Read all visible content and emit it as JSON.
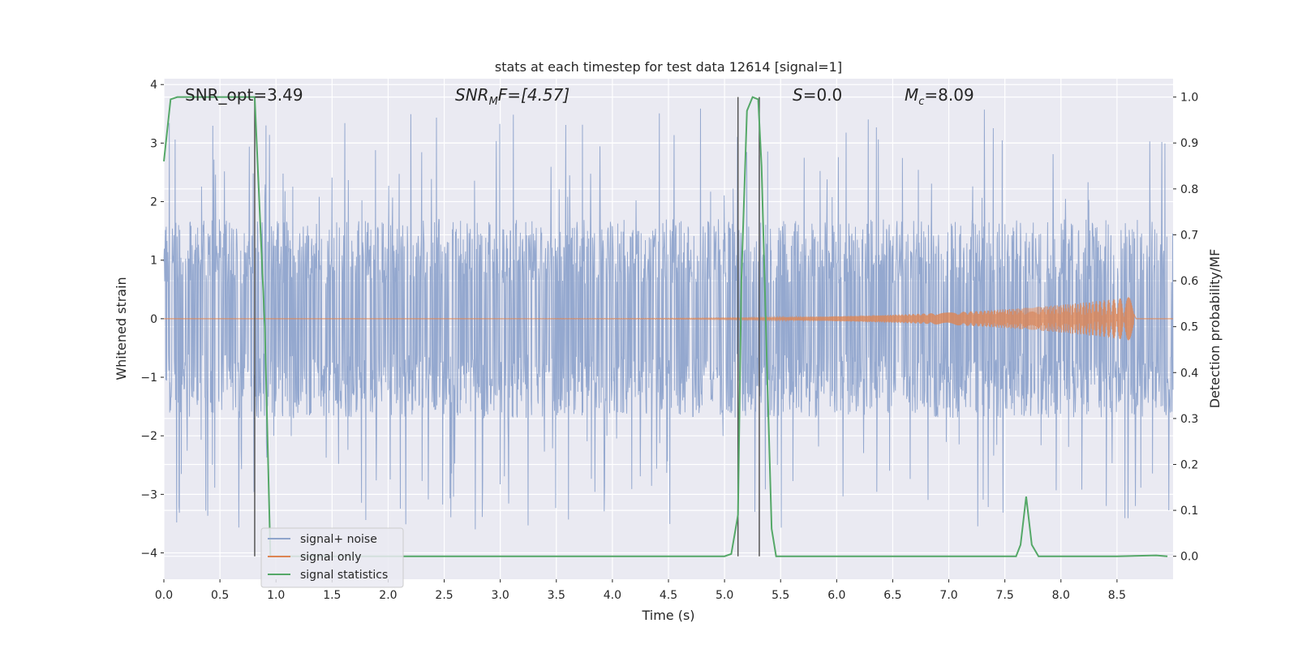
{
  "chart_data": {
    "type": "line",
    "title": "stats at each timestep for test data 12614 [signal=1]",
    "xlabel": "Time (s)",
    "ylabel": "Whitened strain",
    "y2label": "Detection probability/MF",
    "xlim": [
      0.0,
      9.0
    ],
    "ylim": [
      -4.45,
      4.1
    ],
    "y2lim": [
      -0.05,
      1.04
    ],
    "xticks": [
      0.0,
      0.5,
      1.0,
      1.5,
      2.0,
      2.5,
      3.0,
      3.5,
      4.0,
      4.5,
      5.0,
      5.5,
      6.0,
      6.5,
      7.0,
      7.5,
      8.0,
      8.5
    ],
    "xtick_labels": [
      "0.0",
      "0.5",
      "1.0",
      "1.5",
      "2.0",
      "2.5",
      "3.0",
      "3.5",
      "4.0",
      "4.5",
      "5.0",
      "5.5",
      "6.0",
      "6.5",
      "7.0",
      "7.5",
      "8.0",
      "8.5"
    ],
    "yticks": [
      4,
      3,
      2,
      1,
      0,
      -1,
      -2,
      -3,
      -4
    ],
    "ytick_labels": [
      "4",
      "3",
      "2",
      "1",
      "0",
      "−1",
      "−2",
      "−3",
      "−4"
    ],
    "y2ticks": [
      1.0,
      0.9,
      0.8,
      0.7,
      0.6,
      0.5,
      0.4,
      0.3,
      0.2,
      0.1,
      0.0
    ],
    "y2tick_labels": [
      "1.0",
      "0.9",
      "0.8",
      "0.7",
      "0.6",
      "0.5",
      "0.4",
      "0.3",
      "0.2",
      "0.1",
      "0.0"
    ],
    "grid": true,
    "legend_position": "bottom-left",
    "annotations": [
      {
        "id": "snr-opt",
        "text": "SNR_opt=3.49"
      },
      {
        "id": "snr-mf",
        "text": "SNR_MF=[4.57]",
        "parts": [
          "SNR",
          "M",
          "F=[4.57]"
        ]
      },
      {
        "id": "s-value",
        "text": "S=0.0",
        "parts": [
          "S",
          "=0.0"
        ]
      },
      {
        "id": "mc-value",
        "text": "M_c=8.09",
        "parts": [
          "M",
          "c",
          "=8.09"
        ]
      }
    ],
    "vertical_lines": [
      0.81,
      5.12,
      5.31
    ],
    "series": [
      {
        "name": "signal+ noise",
        "color": "#8fa4cc",
        "axis": "left",
        "duration": 9.0,
        "typical_amplitude": 1.7,
        "peak_max": 3.7,
        "peak_min": -4.0
      },
      {
        "name": "signal only",
        "color": "#dd8452",
        "axis": "left",
        "end_time": 8.65,
        "final_amplitude": 0.38
      },
      {
        "name": "signal statistics",
        "color": "#55a868",
        "axis": "right",
        "x": [
          0.0,
          0.06,
          0.12,
          0.2,
          0.4,
          0.6,
          0.81,
          0.9,
          0.95,
          1.0,
          2.0,
          3.0,
          4.0,
          4.8,
          5.0,
          5.06,
          5.12,
          5.15,
          5.2,
          5.25,
          5.3,
          5.33,
          5.38,
          5.42,
          5.46,
          5.5,
          6.0,
          7.0,
          7.6,
          7.64,
          7.69,
          7.74,
          7.8,
          8.5,
          8.85,
          8.95
        ],
        "y": [
          0.86,
          0.995,
          1.0,
          1.0,
          1.0,
          1.0,
          1.0,
          0.5,
          0.0,
          0.0,
          0.0,
          0.0,
          0.0,
          0.0,
          0.0,
          0.005,
          0.09,
          0.6,
          0.97,
          1.0,
          0.995,
          0.85,
          0.4,
          0.06,
          0.0,
          0.0,
          0.0,
          0.0,
          0.0,
          0.025,
          0.13,
          0.025,
          0.0,
          0.0,
          0.002,
          0.0
        ]
      }
    ]
  }
}
